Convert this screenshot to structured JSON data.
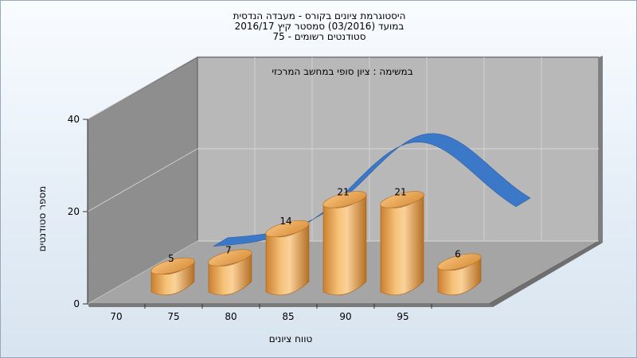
{
  "chart_data": {
    "type": "bar",
    "title_lines": [
      "היסטוגרמת ציונים בקורס - מעבדה הנדסית",
      "במועד   (03/2016)  סמסטר קיץ  2016/17",
      "סטודנטים רשומים - 75"
    ],
    "subtitle": "במשימה : ציון סופי במחשב המרכזי",
    "xlabel": "טווח ציונים",
    "ylabel": "מספר סטודנטים",
    "x_ticks": [
      "70",
      "75",
      "80",
      "85",
      "90",
      "95"
    ],
    "y_ticks": [
      "0",
      "20",
      "40"
    ],
    "ylim": [
      0,
      40
    ],
    "bars": [
      {
        "value": 5,
        "label": "5"
      },
      {
        "value": 7,
        "label": "7"
      },
      {
        "value": 14,
        "label": "14"
      },
      {
        "value": 21,
        "label": "21"
      },
      {
        "value": 21,
        "label": "21"
      },
      {
        "value": 6,
        "label": "6"
      }
    ],
    "curve": {
      "type": "normal-distribution",
      "peak_near": 92,
      "color": "#3b78c8"
    },
    "colors": {
      "bar": "#e7a654",
      "curve": "#3b78c8",
      "back_wall": "#b9b9b9",
      "side_wall": "#8f8f8f",
      "floor": "#a6a6a6"
    },
    "grid": true
  }
}
